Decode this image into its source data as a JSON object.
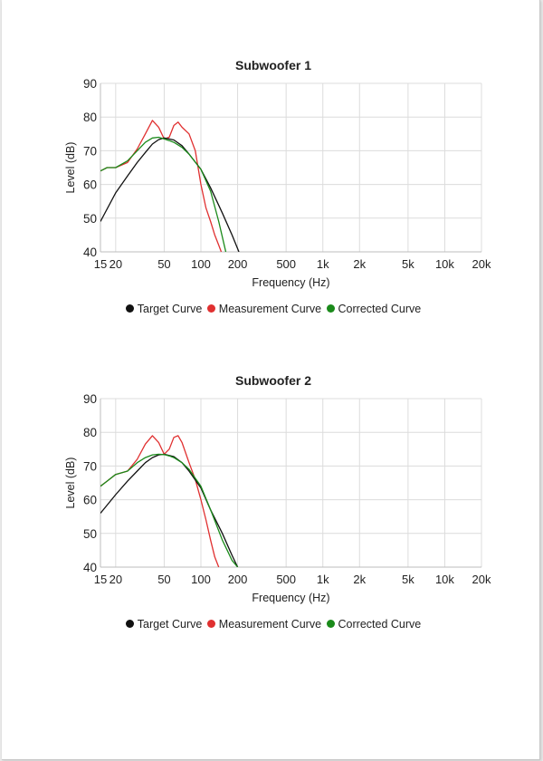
{
  "legend": {
    "target": {
      "label": "Target Curve",
      "color": "#111111"
    },
    "measurement": {
      "label": "Measurement Curve",
      "color": "#e03030"
    },
    "corrected": {
      "label": "Corrected Curve",
      "color": "#1a8a1a"
    }
  },
  "chart_data": [
    {
      "type": "line",
      "title": "Subwoofer 1",
      "xlabel": "Frequency (Hz)",
      "ylabel": "Level (dB)",
      "xscale": "log",
      "xlim": [
        15,
        20000
      ],
      "ylim": [
        40,
        90
      ],
      "x_ticks": [
        15,
        20,
        50,
        100,
        200,
        500,
        1000,
        2000,
        5000,
        10000,
        20000
      ],
      "x_tick_labels": [
        "15",
        "20",
        "50",
        "100",
        "200",
        "500",
        "1k",
        "2k",
        "5k",
        "10k",
        "20k"
      ],
      "y_ticks": [
        40,
        50,
        60,
        70,
        80,
        90
      ],
      "grid": true,
      "legend_position": "bottom",
      "series": [
        {
          "name": "Target Curve",
          "color": "#111111",
          "x": [
            15,
            20,
            25,
            30,
            35,
            40,
            45,
            50,
            60,
            70,
            80,
            100,
            120,
            150,
            180,
            205
          ],
          "y": [
            49,
            57.5,
            62.5,
            66.5,
            69.5,
            72,
            73.3,
            73.8,
            73.2,
            71.5,
            69,
            64.5,
            59,
            51.5,
            45,
            40
          ]
        },
        {
          "name": "Measurement Curve",
          "color": "#e03030",
          "x": [
            15,
            17,
            20,
            25,
            30,
            35,
            40,
            45,
            50,
            55,
            60,
            65,
            70,
            80,
            90,
            100,
            110,
            120,
            130,
            140,
            147
          ],
          "y": [
            64,
            65,
            65,
            66.5,
            70.5,
            75,
            79,
            77,
            73.5,
            74,
            77.5,
            78.5,
            77,
            75,
            70,
            60,
            53,
            49,
            45,
            42,
            40
          ]
        },
        {
          "name": "Corrected Curve",
          "color": "#1a8a1a",
          "x": [
            15,
            17,
            20,
            25,
            30,
            35,
            40,
            45,
            50,
            55,
            60,
            70,
            80,
            100,
            120,
            140,
            160
          ],
          "y": [
            64,
            65,
            65,
            67,
            70,
            72.5,
            73.8,
            74,
            73.5,
            73,
            72.5,
            71,
            69,
            64.5,
            58,
            49,
            40
          ]
        }
      ]
    },
    {
      "type": "line",
      "title": "Subwoofer 2",
      "xlabel": "Frequency (Hz)",
      "ylabel": "Level (dB)",
      "xscale": "log",
      "xlim": [
        15,
        20000
      ],
      "ylim": [
        40,
        90
      ],
      "x_ticks": [
        15,
        20,
        50,
        100,
        200,
        500,
        1000,
        2000,
        5000,
        10000,
        20000
      ],
      "x_tick_labels": [
        "15",
        "20",
        "50",
        "100",
        "200",
        "500",
        "1k",
        "2k",
        "5k",
        "10k",
        "20k"
      ],
      "y_ticks": [
        40,
        50,
        60,
        70,
        80,
        90
      ],
      "grid": true,
      "legend_position": "bottom",
      "series": [
        {
          "name": "Target Curve",
          "color": "#111111",
          "x": [
            15,
            20,
            25,
            30,
            35,
            40,
            45,
            50,
            60,
            70,
            80,
            100,
            120,
            150,
            180,
            200
          ],
          "y": [
            56,
            61.5,
            65.5,
            68.5,
            71,
            72.5,
            73.3,
            73.5,
            72.8,
            71,
            68.5,
            63.5,
            57,
            50,
            43.5,
            40
          ]
        },
        {
          "name": "Measurement Curve",
          "color": "#e03030",
          "x": [
            15,
            17,
            20,
            25,
            30,
            35,
            40,
            45,
            50,
            55,
            60,
            65,
            70,
            80,
            90,
            100,
            110,
            120,
            130,
            140
          ],
          "y": [
            64,
            65.5,
            67.5,
            68.5,
            72,
            76.5,
            79,
            77,
            73.5,
            75,
            78.5,
            79,
            77,
            71,
            66,
            60,
            54,
            48,
            43,
            40
          ]
        },
        {
          "name": "Corrected Curve",
          "color": "#1a8a1a",
          "x": [
            15,
            17,
            20,
            25,
            30,
            35,
            40,
            45,
            50,
            55,
            60,
            70,
            80,
            100,
            120,
            150,
            180,
            200
          ],
          "y": [
            64,
            65.5,
            67.5,
            68.5,
            71,
            72.5,
            73.3,
            73.5,
            73.4,
            73,
            72.5,
            71,
            69,
            64,
            57,
            48,
            42,
            40
          ]
        }
      ]
    }
  ]
}
